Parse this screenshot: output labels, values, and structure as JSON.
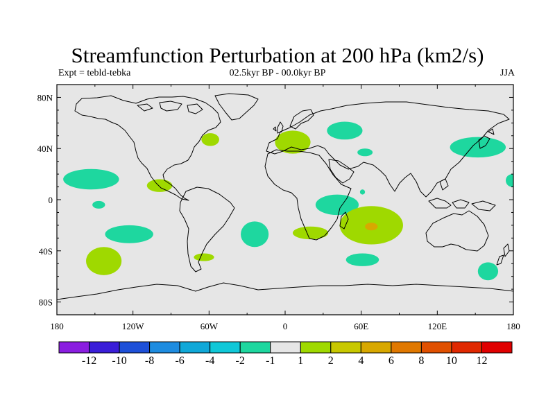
{
  "title": "Streamfunction Perturbation at 200 hPa (km2/s)",
  "experiment": "Expt = tebld-tebka",
  "period": "02.5kyr BP - 00.0kyr BP",
  "season": "JJA",
  "map": {
    "lon_range": [
      -180,
      180
    ],
    "lat_range": [
      -90,
      90
    ],
    "lat_labels": [
      {
        "lat": 80,
        "label": "80N"
      },
      {
        "lat": 40,
        "label": "40N"
      },
      {
        "lat": 0,
        "label": "0"
      },
      {
        "lat": -40,
        "label": "40S"
      },
      {
        "lat": -80,
        "label": "80S"
      }
    ],
    "lon_labels": [
      {
        "lon": -180,
        "label": "180"
      },
      {
        "lon": -120,
        "label": "120W"
      },
      {
        "lon": -60,
        "label": "60W"
      },
      {
        "lon": 0,
        "label": "0"
      },
      {
        "lon": 60,
        "label": "60E"
      },
      {
        "lon": 120,
        "label": "120E"
      },
      {
        "lon": 180,
        "label": "180"
      }
    ]
  },
  "colors": {
    "ocean": "#e6e6e6",
    "neg_light": "#1ed79f",
    "pos_light": "#9fd900",
    "pos_mid": "#c8c800",
    "pos_dark": "#d8a800",
    "coast": "#000000"
  },
  "anomalies": [
    {
      "sign": "neg",
      "level": -2,
      "lon": -153,
      "lat": 16,
      "rx": 22,
      "ry": 8
    },
    {
      "sign": "neg",
      "level": -2,
      "lon": -147,
      "lat": -4,
      "rx": 5,
      "ry": 3
    },
    {
      "sign": "neg",
      "level": -2,
      "lon": -123,
      "lat": -27,
      "rx": 19,
      "ry": 7
    },
    {
      "sign": "pos",
      "level": 2,
      "lon": -143,
      "lat": -48,
      "rx": 14,
      "ry": 11
    },
    {
      "sign": "pos",
      "level": 2,
      "lon": -99,
      "lat": 11,
      "rx": 10,
      "ry": 5
    },
    {
      "sign": "pos",
      "level": 2,
      "lon": -64,
      "lat": -45,
      "rx": 8,
      "ry": 3
    },
    {
      "sign": "pos",
      "level": 2,
      "lon": -59,
      "lat": 47,
      "rx": 7,
      "ry": 5
    },
    {
      "sign": "neg",
      "level": -2,
      "lon": -24,
      "lat": -27,
      "rx": 11,
      "ry": 10
    },
    {
      "sign": "pos",
      "level": 2,
      "lon": 6,
      "lat": 45,
      "rx": 14,
      "ry": 9
    },
    {
      "sign": "neg",
      "level": -2,
      "lon": 47,
      "lat": 54,
      "rx": 14,
      "ry": 7
    },
    {
      "sign": "neg",
      "level": -2,
      "lon": 63,
      "lat": 37,
      "rx": 6,
      "ry": 3
    },
    {
      "sign": "neg",
      "level": -2,
      "lon": 41,
      "lat": -4,
      "rx": 17,
      "ry": 8
    },
    {
      "sign": "pos",
      "level": 2,
      "lon": 20,
      "lat": -26,
      "rx": 14,
      "ry": 5
    },
    {
      "sign": "pos",
      "level": 2,
      "lon": 68,
      "lat": -20,
      "rx": 25,
      "ry": 15
    },
    {
      "sign": "pos",
      "level": 4,
      "lon": 68,
      "lat": -21,
      "rx": 5,
      "ry": 3
    },
    {
      "sign": "neg",
      "level": -2,
      "lon": 61,
      "lat": 6,
      "rx": 2,
      "ry": 2
    },
    {
      "sign": "neg",
      "level": -2,
      "lon": 61,
      "lat": -47,
      "rx": 13,
      "ry": 5
    },
    {
      "sign": "neg",
      "level": -2,
      "lon": 152,
      "lat": 41,
      "rx": 22,
      "ry": 8
    },
    {
      "sign": "neg",
      "level": -2,
      "lon": 179,
      "lat": 15,
      "rx": 5,
      "ry": 5
    },
    {
      "sign": "neg",
      "level": -2,
      "lon": 160,
      "lat": -56,
      "rx": 8,
      "ry": 7
    }
  ],
  "colorbar": {
    "colors": [
      "#8a1ee0",
      "#3a1ed8",
      "#1e50d8",
      "#1e8ce0",
      "#10a8d8",
      "#10c8d8",
      "#1ed79f",
      "#e6e6e6",
      "#9fd900",
      "#c8c800",
      "#d8a800",
      "#e07800",
      "#e05000",
      "#e02800",
      "#e00000"
    ],
    "labels": [
      "-12",
      "-10",
      "-8",
      "-6",
      "-4",
      "-2",
      "-1",
      "1",
      "2",
      "4",
      "6",
      "8",
      "10",
      "12"
    ]
  }
}
